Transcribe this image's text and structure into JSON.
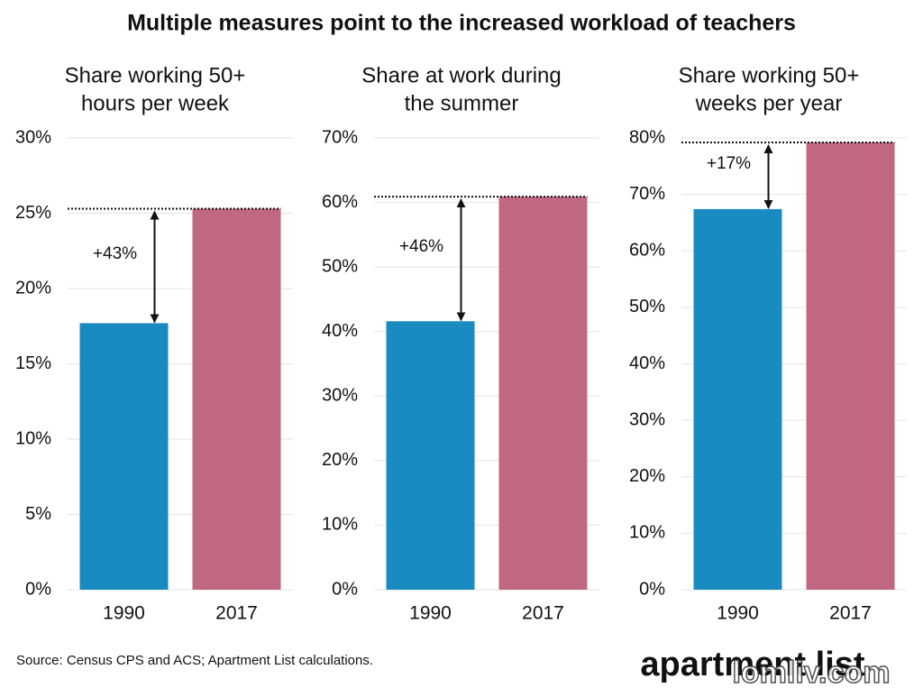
{
  "title": "Multiple measures point to the increased workload of teachers",
  "source": "Source: Census CPS and ACS; Apartment List calculations.",
  "logo": "apartment list",
  "watermark": "lomliv.com",
  "chart_data": [
    {
      "type": "bar",
      "title": [
        "Share working 50+",
        "hours per week"
      ],
      "categories": [
        "1990",
        "2017"
      ],
      "values": [
        17.7,
        25.3
      ],
      "colors": [
        "#1a8bc0",
        "#c06880"
      ],
      "annotation": "+43%",
      "grid": true,
      "ylim": [
        0,
        30
      ],
      "yticks": [
        {
          "value": 0,
          "label": "0%"
        },
        {
          "value": 5,
          "label": "5%"
        },
        {
          "value": 10,
          "label": "10%"
        },
        {
          "value": 15,
          "label": "15%"
        },
        {
          "value": 20,
          "label": "20%"
        },
        {
          "value": 25,
          "label": "25%"
        },
        {
          "value": 30,
          "label": "30%"
        }
      ]
    },
    {
      "type": "bar",
      "title": [
        "Share at work during",
        "the summer"
      ],
      "categories": [
        "1990",
        "2017"
      ],
      "values": [
        41.6,
        60.9
      ],
      "colors": [
        "#1a8bc0",
        "#c06880"
      ],
      "annotation": "+46%",
      "grid": true,
      "ylim": [
        0,
        70
      ],
      "yticks": [
        {
          "value": 0,
          "label": "0%"
        },
        {
          "value": 10,
          "label": "10%"
        },
        {
          "value": 20,
          "label": "20%"
        },
        {
          "value": 30,
          "label": "30%"
        },
        {
          "value": 40,
          "label": "40%"
        },
        {
          "value": 50,
          "label": "50%"
        },
        {
          "value": 60,
          "label": "60%"
        },
        {
          "value": 70,
          "label": "70%"
        }
      ]
    },
    {
      "type": "bar",
      "title": [
        "Share working 50+",
        "weeks per year"
      ],
      "categories": [
        "1990",
        "2017"
      ],
      "values": [
        67.4,
        79.2
      ],
      "colors": [
        "#1a8bc0",
        "#c06880"
      ],
      "annotation": "+17%",
      "grid": true,
      "ylim": [
        0,
        80
      ],
      "yticks": [
        {
          "value": 0,
          "label": "0%"
        },
        {
          "value": 10,
          "label": "10%"
        },
        {
          "value": 20,
          "label": "20%"
        },
        {
          "value": 30,
          "label": "30%"
        },
        {
          "value": 40,
          "label": "40%"
        },
        {
          "value": 50,
          "label": "50%"
        },
        {
          "value": 60,
          "label": "60%"
        },
        {
          "value": 70,
          "label": "70%"
        },
        {
          "value": 80,
          "label": "80%"
        }
      ]
    }
  ]
}
